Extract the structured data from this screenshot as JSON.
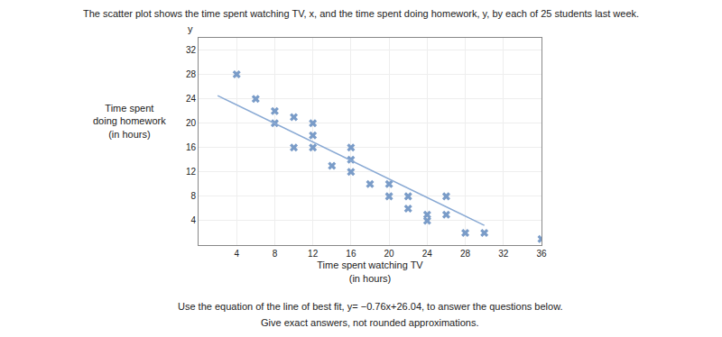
{
  "chart_data": {
    "type": "scatter",
    "title": "The scatter plot shows the time spent watching TV, x, and the time spent doing homework, y, by each of 25 students last week.",
    "x_label": "Time spent watching TV\n(in hours)",
    "y_label": "Time spent\ndoing homework\n(in hours)",
    "annotations": [
      "y",
      "Use the equation of the line of best fit, y= −0.76x+26.04, to answer the questions below.",
      "Give exact answers, not rounded approximations."
    ],
    "series": [
      {
        "type": "scatter",
        "marker": "x",
        "color": "#7a9cc8",
        "x": [
          4,
          6,
          8,
          8,
          10,
          10,
          12,
          12,
          12,
          14,
          16,
          16,
          16,
          18,
          20,
          20,
          22,
          22,
          24,
          24,
          26,
          26,
          28,
          30,
          36
        ],
        "values": [
          28,
          24,
          22,
          20,
          21,
          16,
          20,
          18,
          16,
          13,
          16,
          14,
          12,
          10,
          10,
          8,
          8,
          6,
          5,
          4,
          8,
          5,
          2,
          2,
          1
        ]
      },
      {
        "type": "line",
        "line_style": "solid",
        "color": "#8aaad4",
        "x": [
          2,
          30
        ],
        "values": [
          24.52,
          3.24
        ]
      }
    ],
    "xlim": [
      0,
      36
    ],
    "ylim": [
      0,
      34
    ],
    "xticks": [
      4,
      8,
      12,
      16,
      20,
      24,
      28,
      32,
      36
    ],
    "yticks": [
      4,
      8,
      12,
      16,
      20,
      24,
      28,
      32
    ],
    "grid": true
  }
}
